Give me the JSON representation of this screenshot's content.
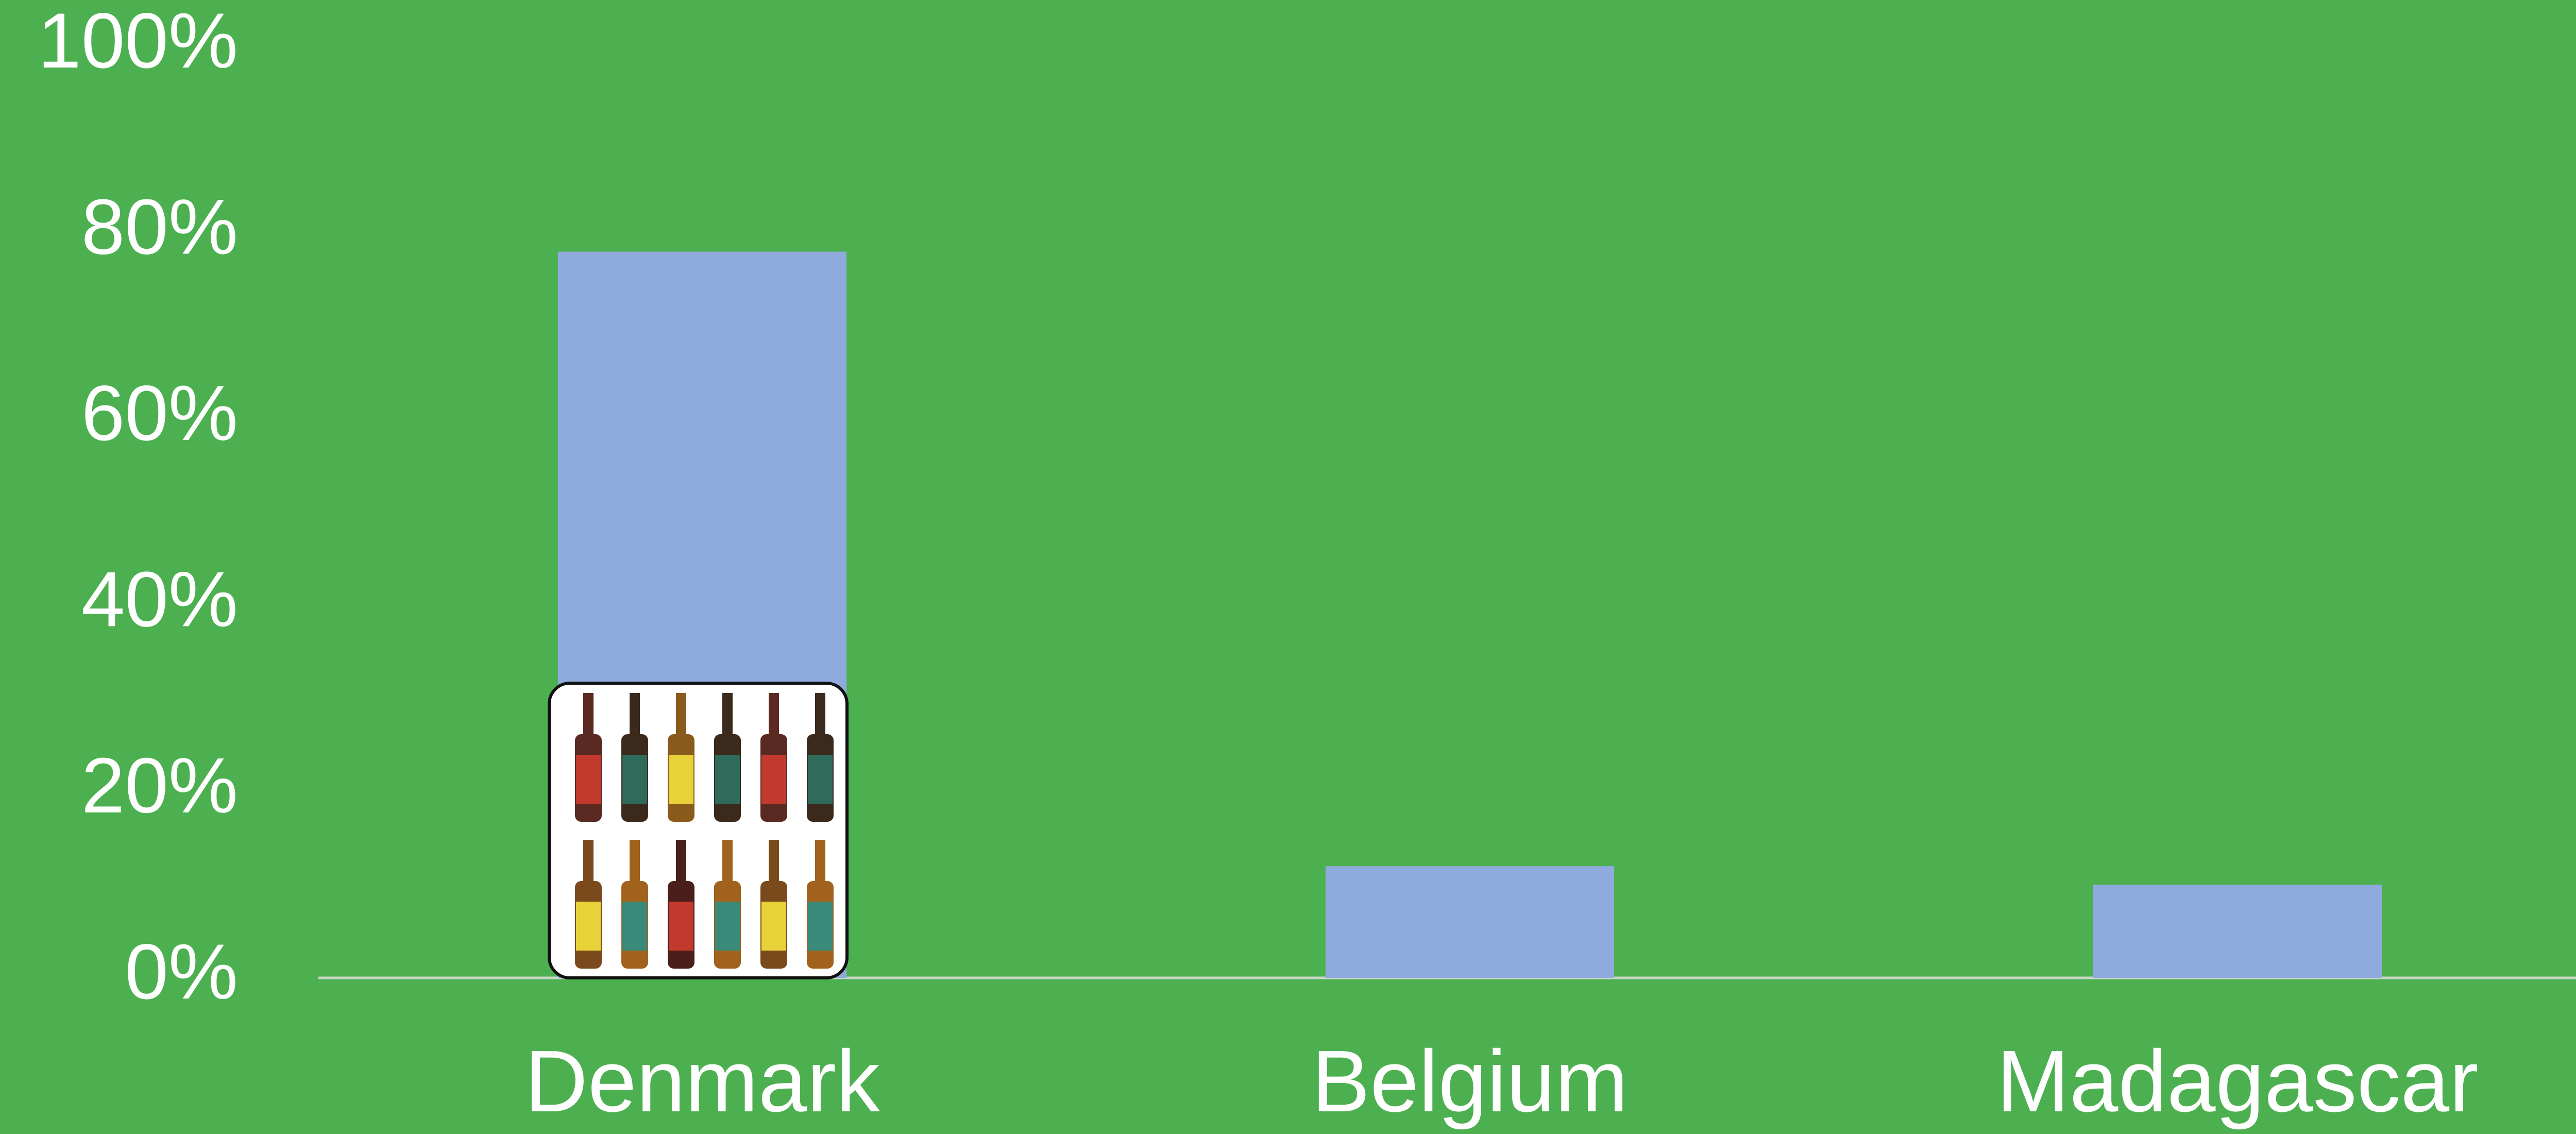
{
  "chart_data": {
    "type": "bar",
    "categories": [
      "Denmark",
      "Belgium",
      "Madagascar"
    ],
    "values": [
      78,
      12,
      10
    ],
    "color": "#8faadc",
    "background": "#4db050",
    "ylim": [
      0,
      100
    ],
    "yticks": [
      {
        "value": 0,
        "label": "0%"
      },
      {
        "value": 20,
        "label": "20%"
      },
      {
        "value": 40,
        "label": "40%"
      },
      {
        "value": 60,
        "label": "60%"
      },
      {
        "value": 80,
        "label": "80%"
      },
      {
        "value": 100,
        "label": "100%"
      }
    ],
    "grid": false
  }
}
